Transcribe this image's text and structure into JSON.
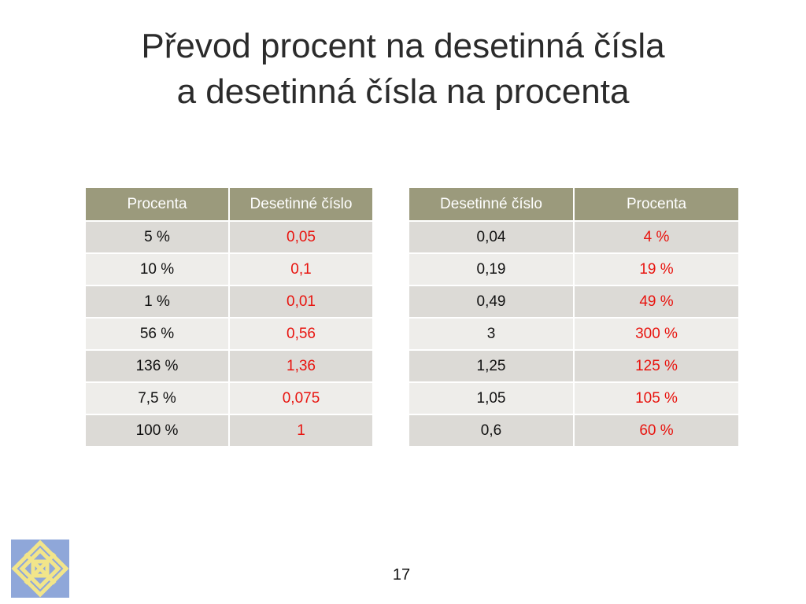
{
  "title": {
    "line1": "Převod procent na desetinná čísla",
    "line2": "a desetinná čísla na procenta"
  },
  "table_left": {
    "headers": [
      "Procenta",
      "Desetinné číslo"
    ],
    "rows": [
      [
        "5 %",
        "0,05"
      ],
      [
        "10 %",
        "0,1"
      ],
      [
        "1 %",
        "0,01"
      ],
      [
        "56 %",
        "0,56"
      ],
      [
        "136 %",
        "1,36"
      ],
      [
        "7,5 %",
        "0,075"
      ],
      [
        "100 %",
        "1"
      ]
    ]
  },
  "table_right": {
    "headers": [
      "Desetinné číslo",
      "Procenta"
    ],
    "rows": [
      [
        "0,04",
        "4 %"
      ],
      [
        "0,19",
        "19 %"
      ],
      [
        "0,49",
        "49 %"
      ],
      [
        "3",
        "300 %"
      ],
      [
        "1,25",
        "125 %"
      ],
      [
        "1,05",
        "105 %"
      ],
      [
        "0,6",
        "60 %"
      ]
    ]
  },
  "colors": {
    "header_bg": "#9b9a7c",
    "row_odd": "#dcdad6",
    "row_even": "#eeedea",
    "answer_text": "#e8140f",
    "logo_bg": "#8fa7d9",
    "logo_fg": "#f2e58a"
  },
  "logo": {
    "icon": "woven-square-logo-icon"
  },
  "page_number": "17"
}
